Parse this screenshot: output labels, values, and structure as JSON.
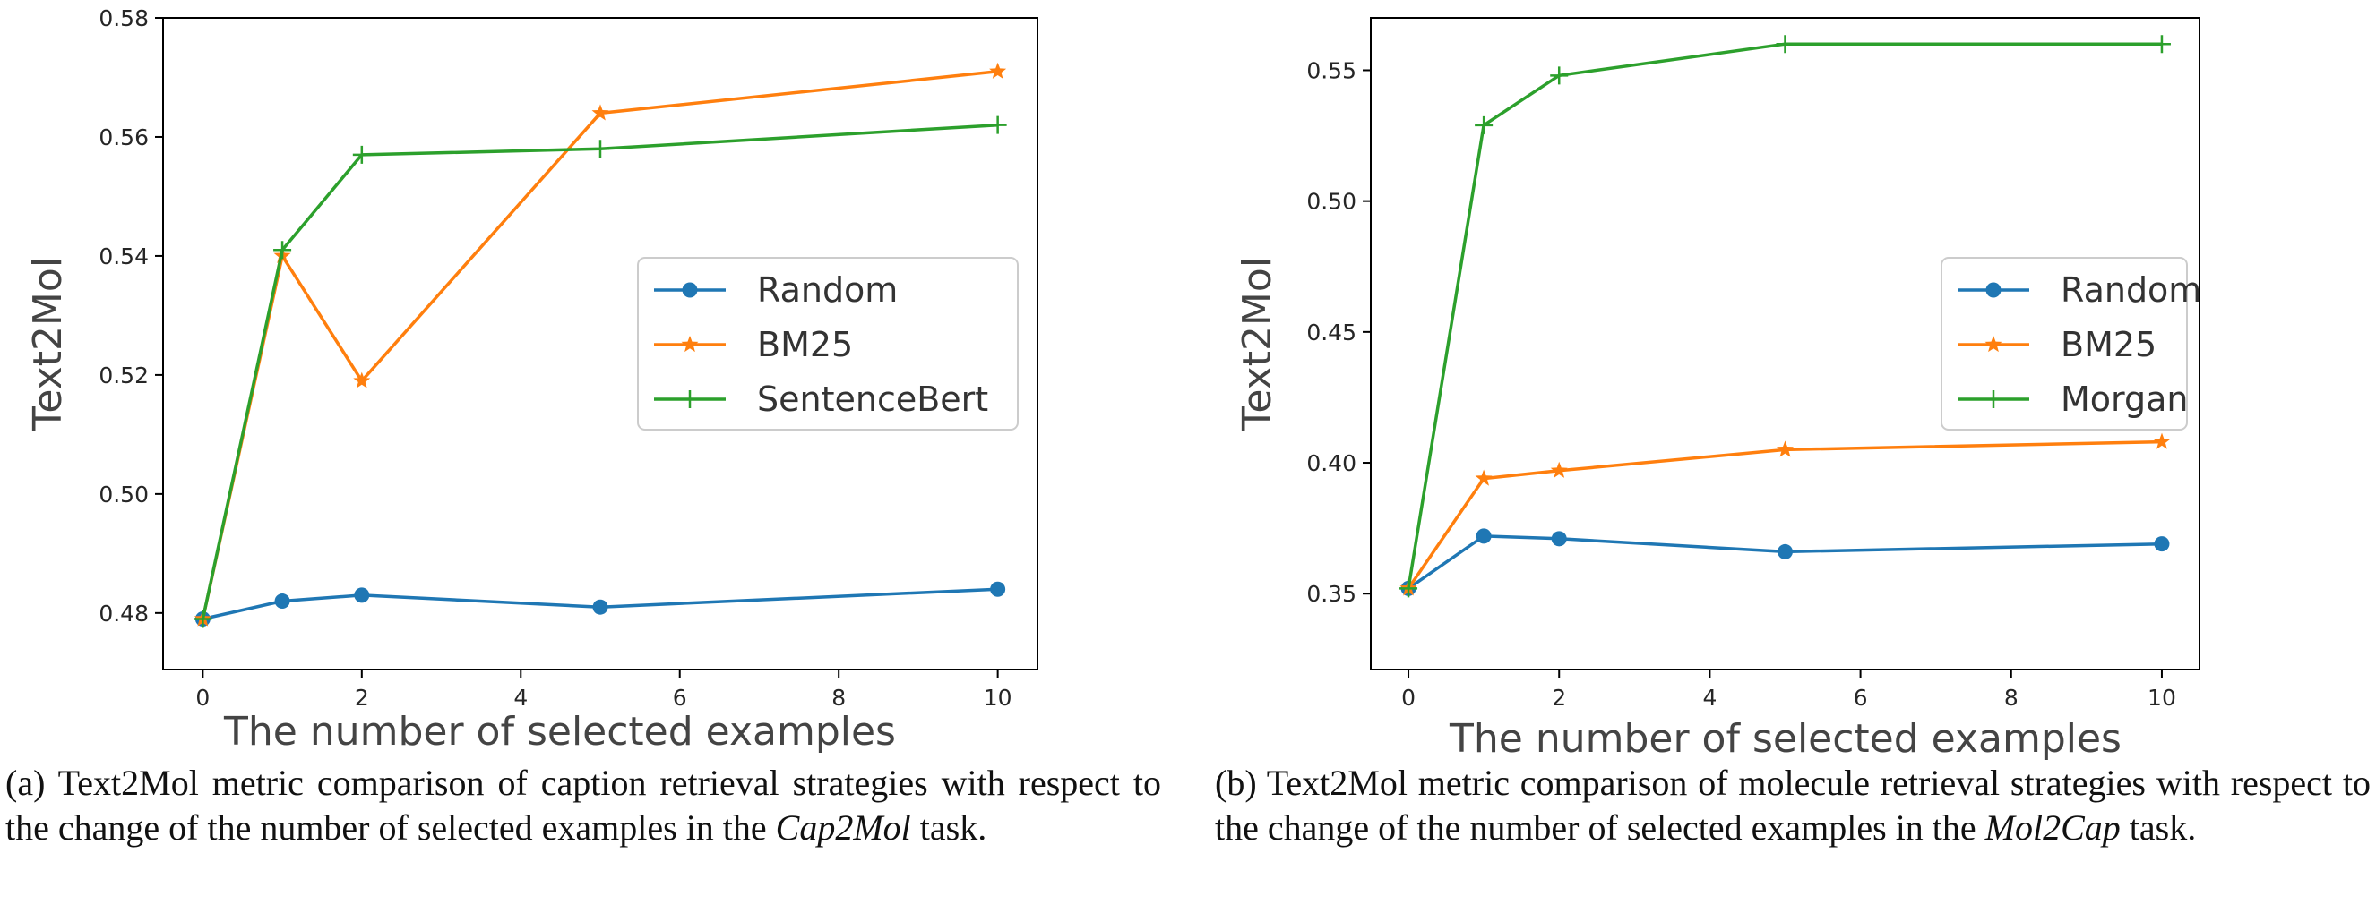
{
  "colors": {
    "random": "#1f77b4",
    "bm25": "#ff7f0e",
    "green": "#2ca02c",
    "axis": "#000000",
    "text": "#262626"
  },
  "chart_data": [
    {
      "type": "line",
      "x": [
        0,
        1,
        2,
        5,
        10
      ],
      "xlabel": "The number of selected examples",
      "ylabel": "Text2Mol",
      "xlim": [
        -0.5,
        10.5
      ],
      "ylim": [
        0.4705,
        0.58
      ],
      "xticks": [
        "0",
        "2",
        "4",
        "6",
        "8",
        "10"
      ],
      "yticks": [
        "0.48",
        "0.50",
        "0.52",
        "0.54",
        "0.56",
        "0.58"
      ],
      "grid": false,
      "legend_position": "center-right",
      "series": [
        {
          "name": "Random",
          "marker": "circle",
          "color": "#1f77b4",
          "values": [
            0.479,
            0.482,
            0.483,
            0.481,
            0.484
          ]
        },
        {
          "name": "BM25",
          "marker": "star",
          "color": "#ff7f0e",
          "values": [
            0.479,
            0.54,
            0.519,
            0.564,
            0.571
          ]
        },
        {
          "name": "SentenceBert",
          "marker": "plus",
          "color": "#2ca02c",
          "values": [
            0.479,
            0.541,
            0.557,
            0.558,
            0.562
          ]
        }
      ]
    },
    {
      "type": "line",
      "x": [
        0,
        1,
        2,
        5,
        10
      ],
      "xlabel": "The number of selected examples",
      "ylabel": "Text2Mol",
      "xlim": [
        -0.5,
        10.5
      ],
      "ylim": [
        0.321,
        0.57
      ],
      "xticks": [
        "0",
        "2",
        "4",
        "6",
        "8",
        "10"
      ],
      "yticks": [
        "0.35",
        "0.40",
        "0.45",
        "0.50",
        "0.55"
      ],
      "grid": false,
      "legend_position": "center-right",
      "series": [
        {
          "name": "Random",
          "marker": "circle",
          "color": "#1f77b4",
          "values": [
            0.352,
            0.372,
            0.371,
            0.366,
            0.369
          ]
        },
        {
          "name": "BM25",
          "marker": "star",
          "color": "#ff7f0e",
          "values": [
            0.352,
            0.394,
            0.397,
            0.405,
            0.408
          ]
        },
        {
          "name": "Morgan",
          "marker": "plus",
          "color": "#2ca02c",
          "values": [
            0.352,
            0.529,
            0.548,
            0.56,
            0.56
          ]
        }
      ]
    }
  ],
  "captions": [
    {
      "prefix": "(a) Text2Mol metric comparison of caption retrieval strategies with respect to the change of the number of selected examples in the ",
      "task": "Cap2Mol",
      "suffix": " task."
    },
    {
      "prefix": "(b) Text2Mol metric comparison of molecule retrieval strategies with respect to the change of the number of selected examples in the ",
      "task": "Mol2Cap",
      "suffix": " task."
    }
  ]
}
